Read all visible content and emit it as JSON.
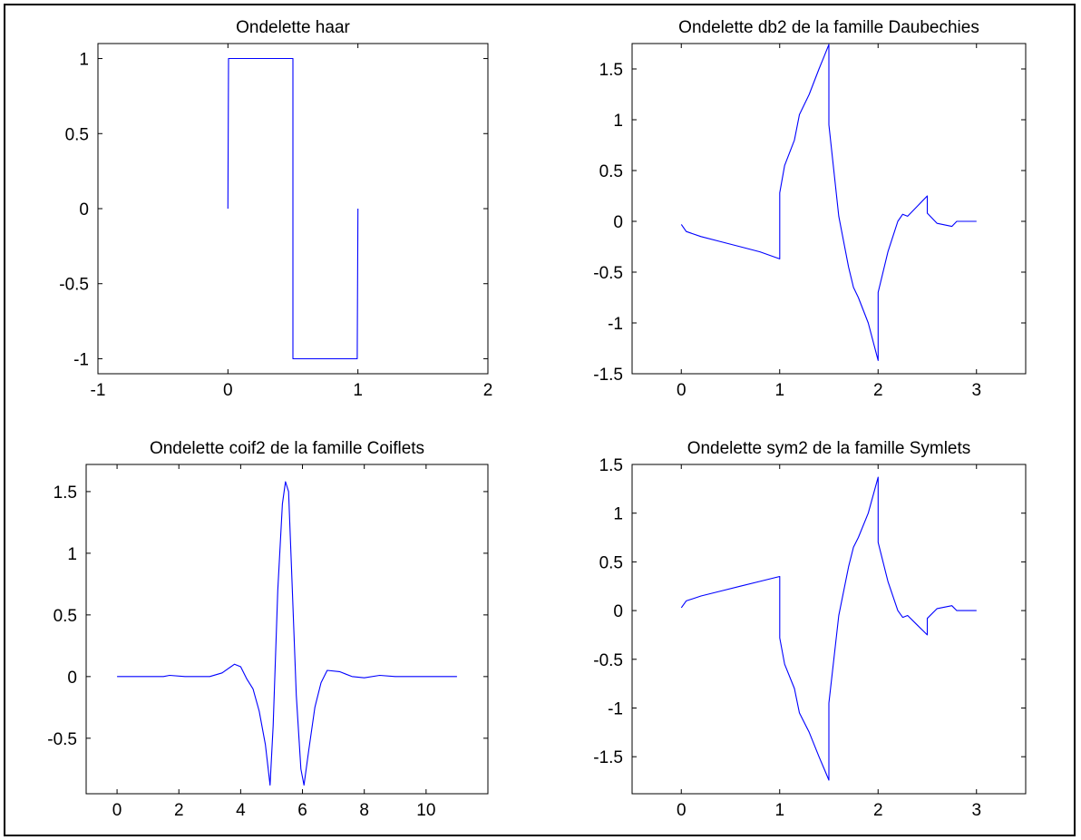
{
  "chart_data": [
    {
      "type": "line",
      "title": "Ondelette haar",
      "xlabel": "",
      "ylabel": "",
      "xlim": [
        -1,
        2
      ],
      "ylim": [
        -1.1,
        1.1
      ],
      "xticks": [
        -1,
        0,
        1,
        2
      ],
      "xtick_labels": [
        "-1",
        "0",
        "1",
        "2"
      ],
      "yticks": [
        -1,
        -0.5,
        0,
        0.5,
        1
      ],
      "ytick_labels": [
        "-1",
        "-0.5",
        "0",
        "0.5",
        "1"
      ],
      "grid": false,
      "line_color": "#0000ff",
      "series": [
        {
          "x": [
            0,
            0.005,
            0.5,
            0.5,
            0.995,
            1.0
          ],
          "y": [
            0,
            1,
            1,
            -1,
            -1,
            0
          ]
        }
      ]
    },
    {
      "type": "line",
      "title": "Ondelette db2 de la famille Daubechies",
      "xlabel": "",
      "ylabel": "",
      "xlim": [
        -0.5,
        3.5
      ],
      "ylim": [
        -1.5,
        1.75
      ],
      "xticks": [
        0,
        1,
        2,
        3
      ],
      "xtick_labels": [
        "0",
        "1",
        "2",
        "3"
      ],
      "yticks": [
        -1.5,
        -1,
        -0.5,
        0,
        0.5,
        1,
        1.5
      ],
      "ytick_labels": [
        "-1.5",
        "-1",
        "-0.5",
        "0",
        "0.5",
        "1",
        "1.5"
      ],
      "grid": false,
      "line_color": "#0000ff",
      "series": [
        {
          "x": [
            0,
            0.05,
            0.2,
            0.4,
            0.6,
            0.8,
            1.0,
            1.0,
            1.05,
            1.15,
            1.2,
            1.3,
            1.4,
            1.45,
            1.5,
            1.5,
            1.6,
            1.7,
            1.75,
            1.8,
            1.9,
            2.0,
            2.0,
            2.1,
            2.2,
            2.25,
            2.3,
            2.4,
            2.5,
            2.5,
            2.6,
            2.75,
            2.8,
            3.0
          ],
          "y": [
            -0.03,
            -0.1,
            -0.15,
            -0.2,
            -0.25,
            -0.3,
            -0.37,
            0.28,
            0.55,
            0.8,
            1.05,
            1.25,
            1.5,
            1.62,
            1.74,
            0.95,
            0.05,
            -0.45,
            -0.65,
            -0.75,
            -1.0,
            -1.37,
            -0.7,
            -0.3,
            0,
            0.07,
            0.05,
            0.15,
            0.25,
            0.08,
            -0.02,
            -0.05,
            0,
            0
          ]
        }
      ]
    },
    {
      "type": "line",
      "title": "Ondelette coif2 de la famille Coiflets",
      "xlabel": "",
      "ylabel": "",
      "xlim": [
        -1,
        12
      ],
      "ylim": [
        -0.95,
        1.72
      ],
      "xticks": [
        0,
        2,
        4,
        6,
        8,
        10
      ],
      "xtick_labels": [
        "0",
        "2",
        "4",
        "6",
        "8",
        "10"
      ],
      "yticks": [
        -0.5,
        0,
        0.5,
        1,
        1.5
      ],
      "ytick_labels": [
        "-0.5",
        "0",
        "0.5",
        "1",
        "1.5"
      ],
      "grid": false,
      "line_color": "#0000ff",
      "series": [
        {
          "x": [
            0,
            1.5,
            1.7,
            2.2,
            3.0,
            3.4,
            3.8,
            4.0,
            4.2,
            4.4,
            4.6,
            4.8,
            4.95,
            5.05,
            5.2,
            5.35,
            5.45,
            5.55,
            5.65,
            5.8,
            5.95,
            6.05,
            6.2,
            6.4,
            6.6,
            6.8,
            7.2,
            7.6,
            8.0,
            8.5,
            9.0,
            11.0
          ],
          "y": [
            0,
            0,
            0.01,
            0,
            0,
            0.03,
            0.1,
            0.08,
            -0.02,
            -0.1,
            -0.28,
            -0.55,
            -0.88,
            -0.4,
            0.7,
            1.4,
            1.58,
            1.5,
            0.85,
            -0.15,
            -0.75,
            -0.88,
            -0.6,
            -0.25,
            -0.05,
            0.05,
            0.04,
            0,
            -0.01,
            0.01,
            0,
            0
          ]
        }
      ]
    },
    {
      "type": "line",
      "title": "Ondelette sym2 de la famille Symlets",
      "xlabel": "",
      "ylabel": "",
      "xlim": [
        -0.5,
        3.5
      ],
      "ylim": [
        -1.88,
        1.5
      ],
      "xticks": [
        0,
        1,
        2,
        3
      ],
      "xtick_labels": [
        "0",
        "1",
        "2",
        "3"
      ],
      "yticks": [
        -1.5,
        -1,
        -0.5,
        0,
        0.5,
        1,
        1.5
      ],
      "ytick_labels": [
        "-1.5",
        "-1",
        "-0.5",
        "0",
        "0.5",
        "1",
        "1.5"
      ],
      "grid": false,
      "line_color": "#0000ff",
      "series": [
        {
          "x": [
            0,
            0.05,
            0.2,
            0.4,
            0.6,
            0.8,
            1.0,
            1.0,
            1.05,
            1.15,
            1.2,
            1.3,
            1.4,
            1.45,
            1.5,
            1.5,
            1.6,
            1.7,
            1.75,
            1.8,
            1.9,
            2.0,
            2.0,
            2.1,
            2.2,
            2.25,
            2.3,
            2.4,
            2.5,
            2.5,
            2.6,
            2.75,
            2.8,
            3.0
          ],
          "y": [
            0.03,
            0.1,
            0.15,
            0.2,
            0.25,
            0.3,
            0.35,
            -0.28,
            -0.55,
            -0.8,
            -1.05,
            -1.25,
            -1.5,
            -1.62,
            -1.74,
            -0.95,
            -0.05,
            0.45,
            0.65,
            0.75,
            1.0,
            1.37,
            0.7,
            0.3,
            0,
            -0.07,
            -0.05,
            -0.15,
            -0.25,
            -0.08,
            0.02,
            0.05,
            0,
            0
          ]
        }
      ]
    }
  ]
}
